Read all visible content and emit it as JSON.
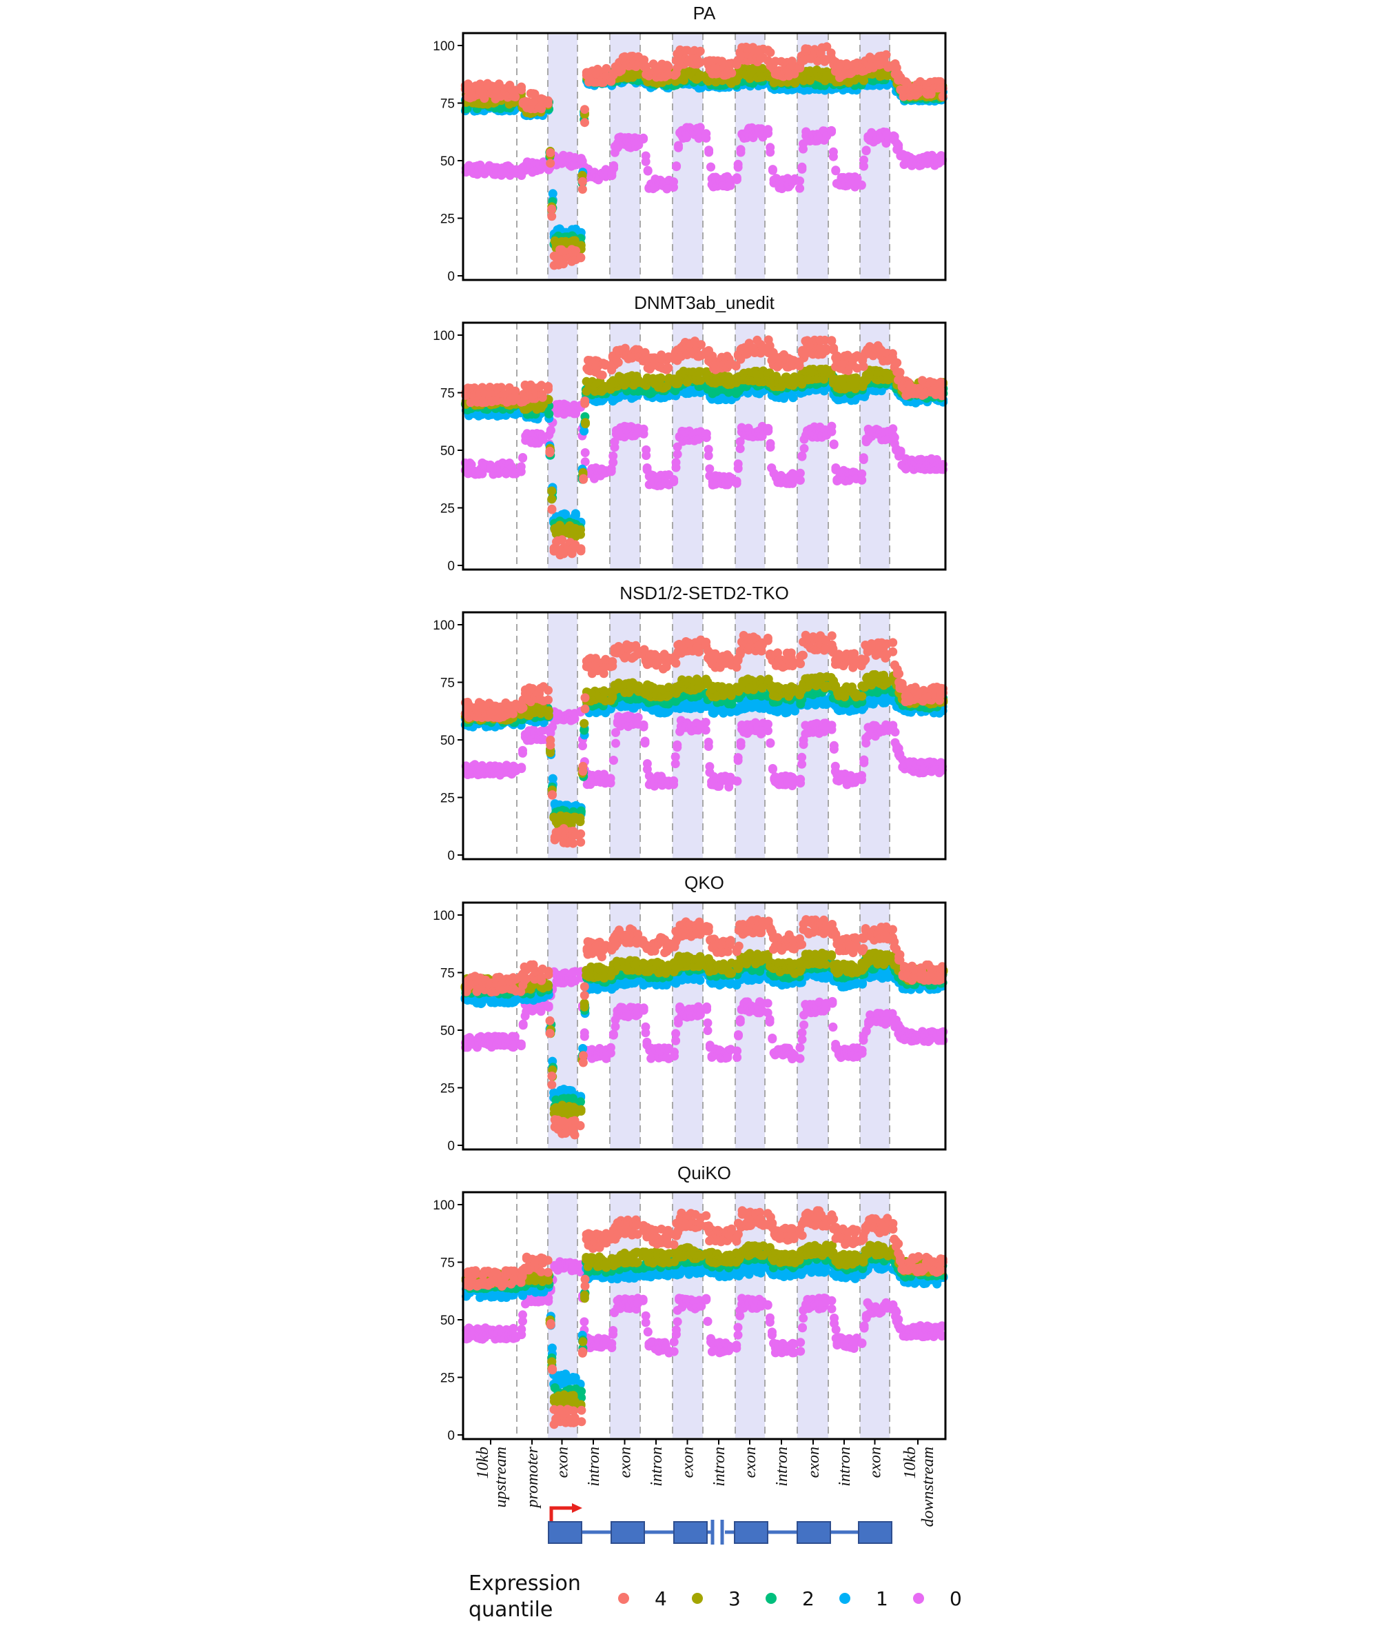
{
  "chart_data": {
    "type": "scatter",
    "x_categories": [
      "10kb upstream",
      "promoter",
      "exon",
      "intron",
      "exon",
      "intron",
      "exon",
      "intron",
      "exon",
      "intron",
      "exon",
      "intron",
      "exon",
      "10kb downstream"
    ],
    "x_category_lines": [
      [
        "10kb",
        "upstream"
      ],
      [
        "promoter"
      ],
      [
        "exon"
      ],
      [
        "intron"
      ],
      [
        "exon"
      ],
      [
        "intron"
      ],
      [
        "exon"
      ],
      [
        "intron"
      ],
      [
        "exon"
      ],
      [
        "intron"
      ],
      [
        "exon"
      ],
      [
        "intron"
      ],
      [
        "exon"
      ],
      [
        "10kb",
        "downstream"
      ]
    ],
    "ylim": [
      0,
      100
    ],
    "yticks": [
      0,
      25,
      50,
      75,
      100
    ],
    "legend": {
      "title_lines": [
        "Expression",
        "quantile"
      ],
      "entries": [
        {
          "label": "4",
          "color": "#F8766D"
        },
        {
          "label": "3",
          "color": "#A3A500"
        },
        {
          "label": "2",
          "color": "#00BF7D"
        },
        {
          "label": "1",
          "color": "#00B0F6"
        },
        {
          "label": "0",
          "color": "#E76BF3"
        }
      ]
    },
    "gene_model": {
      "exons": 6,
      "tss_arrow_color": "#E8231E",
      "exon_color": "#4472C4"
    },
    "panels": [
      {
        "title": "PA",
        "series": [
          {
            "name": "0",
            "color": "#E76BF3",
            "values": [
              46,
              47,
              50,
              44,
              58,
              40,
              62,
              41,
              62,
              40,
              61,
              41,
              60,
              50
            ]
          },
          {
            "name": "1",
            "color": "#00B0F6",
            "values": [
              74,
              72,
              18,
              85,
              86,
              84,
              84,
              84,
              84,
              83,
              83,
              83,
              85,
              78
            ]
          },
          {
            "name": "2",
            "color": "#00BF7D",
            "values": [
              75,
              73,
              15,
              86,
              87,
              85,
              86,
              85,
              86,
              85,
              85,
              85,
              87,
              79
            ]
          },
          {
            "name": "3",
            "color": "#A3A500",
            "values": [
              77,
              73,
              13,
              87,
              88,
              86,
              87,
              86,
              88,
              86,
              87,
              86,
              89,
              80
            ]
          },
          {
            "name": "4",
            "color": "#F8766D",
            "values": [
              80,
              76,
              8,
              87,
              92,
              89,
              95,
              90,
              96,
              90,
              96,
              89,
              93,
              81
            ]
          }
        ]
      },
      {
        "title": "DNMT3ab_unedit",
        "series": [
          {
            "name": "0",
            "color": "#E76BF3",
            "values": [
              42,
              55,
              68,
              40,
              58,
              37,
              56,
              37,
              58,
              38,
              58,
              39,
              57,
              44
            ]
          },
          {
            "name": "1",
            "color": "#00B0F6",
            "values": [
              67,
              66,
              20,
              73,
              75,
              75,
              77,
              74,
              77,
              75,
              78,
              74,
              78,
              73
            ]
          },
          {
            "name": "2",
            "color": "#00BF7D",
            "values": [
              70,
              68,
              17,
              76,
              78,
              77,
              80,
              77,
              80,
              78,
              81,
              77,
              81,
              75
            ]
          },
          {
            "name": "3",
            "color": "#A3A500",
            "values": [
              72,
              70,
              15,
              78,
              80,
              79,
              82,
              80,
              82,
              80,
              83,
              79,
              83,
              77
            ]
          },
          {
            "name": "4",
            "color": "#F8766D",
            "values": [
              74,
              75,
              8,
              86,
              91,
              88,
              94,
              88,
              95,
              89,
              95,
              88,
              92,
              77
            ]
          }
        ]
      },
      {
        "title": "NSD1/2-SETD2-TKO",
        "series": [
          {
            "name": "0",
            "color": "#E76BF3",
            "values": [
              37,
              52,
              60,
              33,
              58,
              32,
              56,
              32,
              55,
              32,
              55,
              33,
              54,
              38
            ]
          },
          {
            "name": "1",
            "color": "#00B0F6",
            "values": [
              58,
              60,
              20,
              64,
              66,
              64,
              66,
              64,
              66,
              64,
              67,
              64,
              68,
              64
            ]
          },
          {
            "name": "2",
            "color": "#00BF7D",
            "values": [
              60,
              62,
              17,
              67,
              70,
              68,
              71,
              68,
              71,
              68,
              72,
              68,
              73,
              66
            ]
          },
          {
            "name": "3",
            "color": "#A3A500",
            "values": [
              61,
              63,
              15,
              69,
              73,
              71,
              74,
              71,
              74,
              71,
              75,
              71,
              76,
              68
            ]
          },
          {
            "name": "4",
            "color": "#F8766D",
            "values": [
              63,
              70,
              8,
              82,
              88,
              84,
              91,
              84,
              92,
              85,
              92,
              84,
              89,
              70
            ]
          }
        ]
      },
      {
        "title": "QKO",
        "series": [
          {
            "name": "0",
            "color": "#E76BF3",
            "values": [
              45,
              60,
              73,
              40,
              58,
              40,
              58,
              40,
              60,
              40,
              60,
              40,
              55,
              47
            ]
          },
          {
            "name": "1",
            "color": "#00B0F6",
            "values": [
              64,
              65,
              22,
              70,
              72,
              72,
              74,
              72,
              74,
              72,
              75,
              71,
              75,
              70
            ]
          },
          {
            "name": "2",
            "color": "#00BF7D",
            "values": [
              68,
              68,
              18,
              73,
              76,
              75,
              78,
              75,
              78,
              75,
              79,
              75,
              79,
              72
            ]
          },
          {
            "name": "3",
            "color": "#A3A500",
            "values": [
              70,
              70,
              15,
              75,
              78,
              77,
              80,
              77,
              81,
              77,
              81,
              77,
              81,
              74
            ]
          },
          {
            "name": "4",
            "color": "#F8766D",
            "values": [
              70,
              75,
              8,
              85,
              91,
              87,
              94,
              87,
              95,
              88,
              95,
              87,
              92,
              75
            ]
          }
        ]
      },
      {
        "title": "QuiKO",
        "series": [
          {
            "name": "0",
            "color": "#E76BF3",
            "values": [
              44,
              60,
              73,
              40,
              57,
              38,
              57,
              38,
              57,
              38,
              57,
              40,
              55,
              45
            ]
          },
          {
            "name": "1",
            "color": "#00B0F6",
            "values": [
              62,
              64,
              24,
              70,
              70,
              71,
              72,
              71,
              72,
              71,
              73,
              70,
              74,
              68
            ]
          },
          {
            "name": "2",
            "color": "#00BF7D",
            "values": [
              66,
              67,
              18,
              73,
              74,
              75,
              77,
              75,
              78,
              75,
              78,
              74,
              78,
              71
            ]
          },
          {
            "name": "3",
            "color": "#A3A500",
            "values": [
              68,
              69,
              15,
              75,
              77,
              77,
              79,
              77,
              80,
              77,
              80,
              76,
              80,
              73
            ]
          },
          {
            "name": "4",
            "color": "#F8766D",
            "values": [
              68,
              74,
              8,
              84,
              90,
              86,
              93,
              86,
              94,
              87,
              94,
              86,
              91,
              74
            ]
          }
        ]
      }
    ]
  }
}
